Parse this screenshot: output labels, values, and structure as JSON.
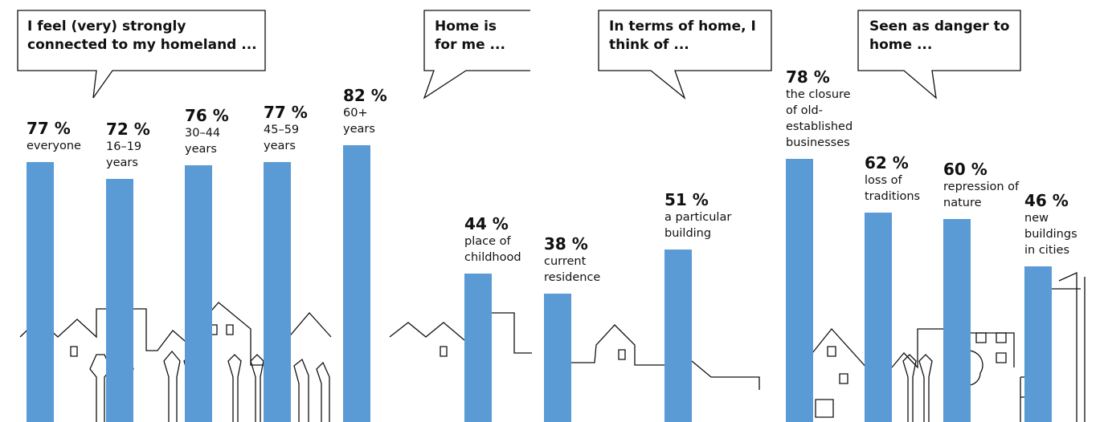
{
  "chart_data": [
    {
      "type": "bar",
      "title": "I feel (very) strongly connected to my homeland ...",
      "categories": [
        "everyone",
        "16–19 years",
        "30–44 years",
        "45–59 years",
        "60+ years"
      ],
      "values": [
        77,
        72,
        76,
        77,
        82
      ],
      "value_labels": [
        "77 %",
        "72 %",
        "76 %",
        "77 %",
        "82 %"
      ],
      "color": "#5b9bd5",
      "ylim": [
        0,
        100
      ]
    },
    {
      "type": "bar",
      "title": "Home is for me ...",
      "categories": [
        "place of childhood",
        "current residence"
      ],
      "values": [
        44,
        38
      ],
      "value_labels": [
        "44 %",
        "38 %"
      ],
      "color": "#5b9bd5",
      "ylim": [
        0,
        100
      ]
    },
    {
      "type": "bar",
      "title": "In terms of home, I think of ...",
      "categories": [
        "a particular building"
      ],
      "values": [
        51
      ],
      "value_labels": [
        "51 %"
      ],
      "color": "#5b9bd5",
      "ylim": [
        0,
        100
      ]
    },
    {
      "type": "bar",
      "title": "Seen as danger to home ...",
      "categories": [
        "the closure of old-established businesses",
        "loss of traditions",
        "repression of nature",
        "new buildings in cities"
      ],
      "values": [
        78,
        62,
        60,
        46
      ],
      "value_labels": [
        "78 %",
        "62 %",
        "60 %",
        "46 %"
      ],
      "color": "#5b9bd5",
      "ylim": [
        0,
        100
      ]
    }
  ]
}
